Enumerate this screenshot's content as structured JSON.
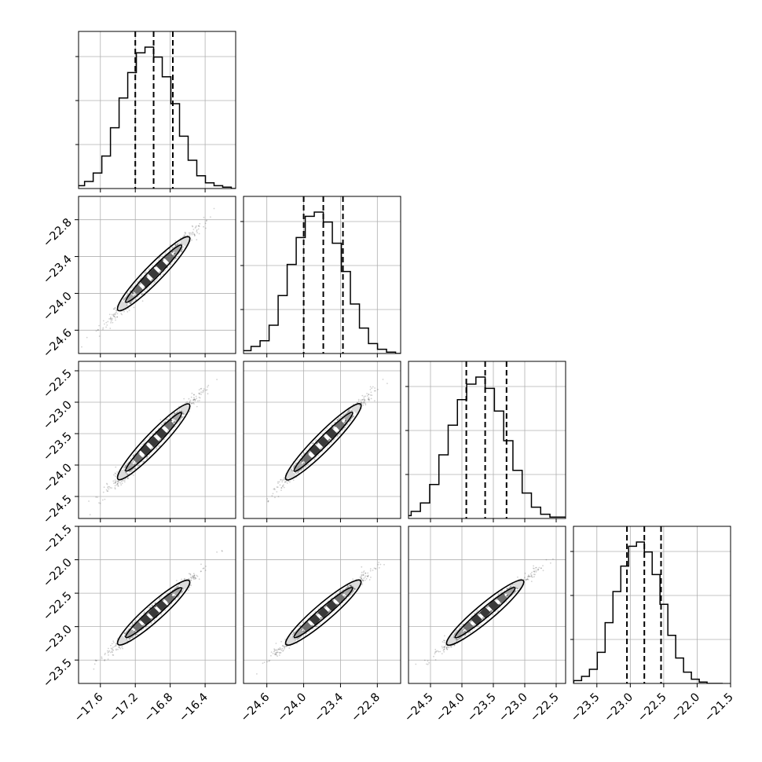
{
  "chart_data": {
    "type": "corner",
    "dimensions": 4,
    "grid": true,
    "colors": {
      "lines": "#000000",
      "grid": "#b0b0b0",
      "scatter": "#000000",
      "density_levels": [
        "#3a3a3a",
        "#6e6e6e",
        "#a8a8a8",
        "#dcdcdc"
      ]
    },
    "parameters": [
      {
        "range": [
          -17.85,
          -16.05
        ],
        "ticks": [
          -17.6,
          -17.2,
          -16.8,
          -16.4
        ],
        "tick_labels": [
          "−17.6",
          "−17.2",
          "−16.8",
          "−16.4"
        ],
        "quantiles": [
          -17.2,
          -16.99,
          -16.77
        ]
      },
      {
        "range": [
          -24.98,
          -22.42
        ],
        "ticks": [
          -24.6,
          -24.0,
          -23.4,
          -22.8
        ],
        "tick_labels": [
          "−24.6",
          "−24.0",
          "−23.4",
          "−22.8"
        ],
        "quantiles": [
          -24.0,
          -23.68,
          -23.36
        ]
      },
      {
        "range": [
          -24.85,
          -22.35
        ],
        "ticks": [
          -24.5,
          -24.0,
          -23.5,
          -23.0,
          -22.5
        ],
        "tick_labels": [
          "−24.5",
          "−24.0",
          "−23.5",
          "−23.0",
          "−22.5"
        ],
        "quantiles": [
          -23.93,
          -23.63,
          -23.29
        ]
      },
      {
        "range": [
          -23.85,
          -21.5
        ],
        "ticks": [
          -23.5,
          -23.0,
          -22.5,
          -22.0,
          -21.5
        ],
        "tick_labels": [
          "−23.5",
          "−23.0",
          "−22.5",
          "−22.0",
          "−21.5"
        ],
        "quantiles": [
          -23.05,
          -22.79,
          -22.54
        ]
      }
    ],
    "histograms": [
      [
        0.01,
        0.02,
        0.05,
        0.11,
        0.23,
        0.43,
        0.64,
        0.82,
        0.96,
        1.0,
        0.93,
        0.79,
        0.6,
        0.37,
        0.2,
        0.09,
        0.04,
        0.02,
        0.01,
        0.0
      ],
      [
        0.01,
        0.02,
        0.05,
        0.09,
        0.2,
        0.41,
        0.63,
        0.82,
        0.97,
        1.0,
        0.93,
        0.78,
        0.58,
        0.35,
        0.18,
        0.07,
        0.03,
        0.01,
        0.0,
        0.0
      ],
      [
        0.01,
        0.02,
        0.05,
        0.11,
        0.24,
        0.45,
        0.66,
        0.84,
        0.95,
        1.0,
        0.92,
        0.76,
        0.55,
        0.34,
        0.18,
        0.08,
        0.03,
        0.01,
        0.01,
        0.0
      ],
      [
        0.01,
        0.02,
        0.05,
        0.1,
        0.22,
        0.43,
        0.65,
        0.83,
        0.97,
        1.0,
        0.93,
        0.77,
        0.56,
        0.34,
        0.18,
        0.08,
        0.03,
        0.01,
        0.0,
        0.0
      ]
    ],
    "correlations": {
      "1-0": 0.98,
      "2-0": 0.98,
      "2-1": 0.985,
      "3-0": 0.98,
      "3-1": 0.985,
      "3-2": 0.985
    },
    "contour_levels_sigma": [
      1,
      2
    ]
  }
}
